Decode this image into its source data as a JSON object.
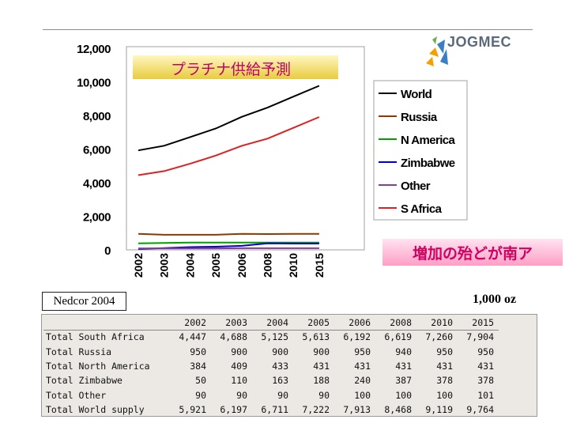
{
  "logo": {
    "text": "JOGMEC"
  },
  "chart_data": {
    "type": "line",
    "title": "プラチナ供給予測",
    "callout": "増加の殆どが南ア",
    "categories": [
      "2002",
      "2003",
      "2004",
      "2005",
      "2006",
      "2008",
      "2010",
      "2015"
    ],
    "y_ticks": [
      "12,000",
      "10,000",
      "8,000",
      "6,000",
      "4,000",
      "2,000",
      "0"
    ],
    "ylim": [
      0,
      12000
    ],
    "grid": false,
    "legend_position": "right",
    "series": [
      {
        "name": "World",
        "color": "#000000",
        "values": [
          5921,
          6197,
          6711,
          7222,
          7913,
          8468,
          9119,
          9764
        ]
      },
      {
        "name": "Russia",
        "color": "#8b3a00",
        "values": [
          950,
          900,
          900,
          900,
          950,
          940,
          950,
          950
        ]
      },
      {
        "name": "N America",
        "color": "#00a000",
        "values": [
          384,
          409,
          433,
          431,
          431,
          431,
          431,
          431
        ]
      },
      {
        "name": "Zimbabwe",
        "color": "#0000cc",
        "values": [
          50,
          110,
          163,
          188,
          240,
          387,
          378,
          378
        ]
      },
      {
        "name": "Other",
        "color": "#8a3a9a",
        "values": [
          90,
          90,
          90,
          90,
          100,
          100,
          100,
          101
        ]
      },
      {
        "name": "S Africa",
        "color": "#e02020",
        "values": [
          4447,
          4688,
          5125,
          5613,
          6192,
          6619,
          7260,
          7904
        ]
      }
    ]
  },
  "source": "Nedcor 2004",
  "unit": "1,000 oz",
  "table": {
    "header": [
      "2002",
      "2003",
      "2004",
      "2005",
      "2006",
      "2008",
      "2010",
      "2015"
    ],
    "rows": [
      {
        "label": "Total South Africa",
        "values": [
          "4,447",
          "4,688",
          "5,125",
          "5,613",
          "6,192",
          "6,619",
          "7,260",
          "7,904"
        ]
      },
      {
        "label": "Total Russia",
        "values": [
          "950",
          "900",
          "900",
          "900",
          "950",
          "940",
          "950",
          "950"
        ]
      },
      {
        "label": "Total North America",
        "values": [
          "384",
          "409",
          "433",
          "431",
          "431",
          "431",
          "431",
          "431"
        ]
      },
      {
        "label": "Total Zimbabwe",
        "values": [
          "50",
          "110",
          "163",
          "188",
          "240",
          "387",
          "378",
          "378"
        ]
      },
      {
        "label": "Total Other",
        "values": [
          "90",
          "90",
          "90",
          "90",
          "100",
          "100",
          "100",
          "101"
        ]
      },
      {
        "label": "Total World supply",
        "values": [
          "5,921",
          "6,197",
          "6,711",
          "7,222",
          "7,913",
          "8,468",
          "9,119",
          "9,764"
        ]
      }
    ]
  }
}
